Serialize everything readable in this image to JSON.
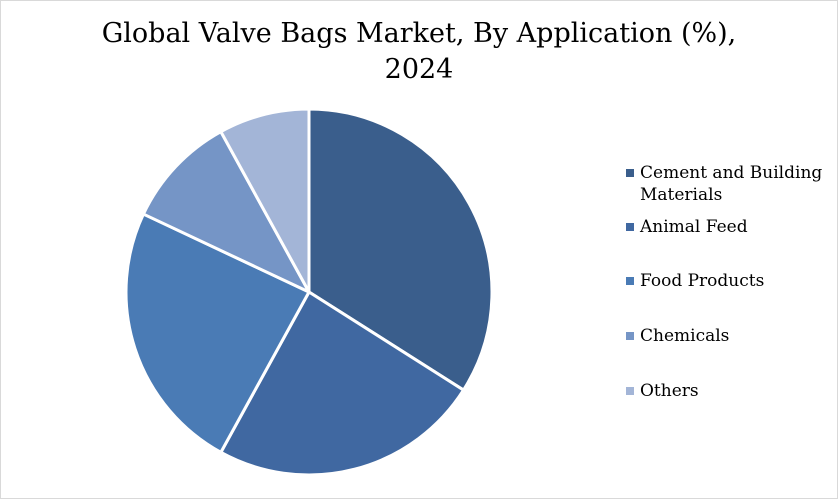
{
  "chart_data": {
    "type": "pie",
    "title": "Global Valve Bags Market, By Application (%), 2024",
    "title_lines": [
      "Global Valve Bags Market, By Application (%),",
      "2024"
    ],
    "legend_position": "right",
    "categories": [
      "Cement and Building Materials",
      "Animal Feed",
      "Food Products",
      "Chemicals",
      "Others"
    ],
    "values": [
      34,
      24,
      24,
      10,
      8
    ],
    "colors": [
      "#3a5e8c",
      "#4068a1",
      "#4a7bb5",
      "#7595c6",
      "#a3b5d7"
    ],
    "start_angle_deg": 0,
    "direction": "clockwise"
  }
}
